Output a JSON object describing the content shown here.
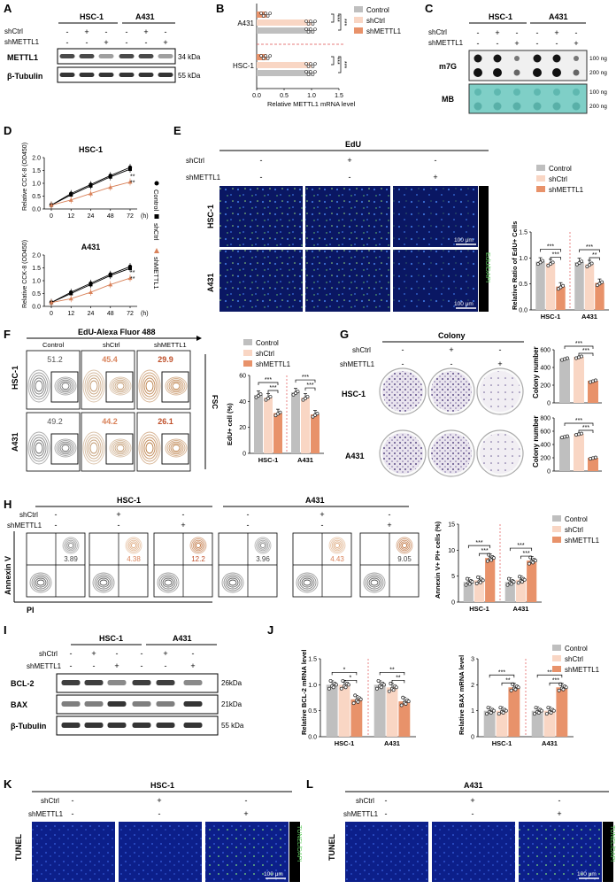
{
  "colors": {
    "control": "#bfbfbf",
    "shctrl": "#f9d6c4",
    "shmettl1": "#e8926a",
    "sh_dark": "#d9825a",
    "blot": "#2a2a2a",
    "dotbg": "#f2f2f2",
    "mb": "#7fcfc7",
    "micro": "#0b1a6b",
    "sig": "#d40000",
    "dash": "#e05050"
  },
  "common": {
    "shCtrl": "shCtrl",
    "shMETTL1": "shMETTL1",
    "Control": "Control",
    "HSC1": "HSC-1",
    "A431": "A431",
    "minus": "-",
    "plus": "+",
    "legend": [
      "Control",
      "shCtrl",
      "shMETTL1"
    ],
    "sig3": "***",
    "sig2": "**",
    "sig1": "*"
  },
  "panelA": {
    "letter": "A",
    "blot1": "METTL1",
    "blot2": "β-Tubulin",
    "kda1": "34 kDa",
    "kda2": "55 kDa"
  },
  "panelB": {
    "letter": "B",
    "xlabel": "Relative METTL1 mRNA level",
    "ticks": [
      "0.0",
      "0.5",
      "1.0",
      "1.5"
    ],
    "chart_data": {
      "type": "bar",
      "categories": [
        "A431",
        "HSC-1"
      ],
      "series": [
        {
          "name": "Control",
          "values": [
            1.0,
            1.0
          ]
        },
        {
          "name": "shCtrl",
          "values": [
            1.0,
            1.0
          ]
        },
        {
          "name": "shMETTL1",
          "values": [
            0.18,
            0.18
          ]
        }
      ],
      "xlim": [
        0,
        1.5
      ]
    }
  },
  "panelC": {
    "letter": "C",
    "m7g": "m7G",
    "mb": "MB",
    "ng100": "100 ng",
    "ng200": "200 ng"
  },
  "panelD": {
    "letter": "D",
    "ylabel": "Relative CCK-8 (OD450)",
    "xticks": [
      "0",
      "12",
      "24",
      "48",
      "72"
    ],
    "xunit": "(h)",
    "top": {
      "title": "HSC-1",
      "yticks": [
        "0.0",
        "0.5",
        "1.0",
        "1.5",
        "2.0"
      ]
    },
    "bottom": {
      "title": "A431",
      "yticks": [
        "0.0",
        "0.5",
        "1.0",
        "1.5",
        "2.0"
      ]
    },
    "chart_data": [
      {
        "type": "line",
        "title": "HSC-1",
        "x": [
          0,
          12,
          24,
          48,
          72
        ],
        "series": [
          {
            "name": "Control",
            "values": [
              0.15,
              0.6,
              0.95,
              1.3,
              1.62
            ]
          },
          {
            "name": "shCtrl",
            "values": [
              0.15,
              0.55,
              0.9,
              1.25,
              1.55
            ]
          },
          {
            "name": "shMETTL1",
            "values": [
              0.15,
              0.35,
              0.6,
              0.85,
              1.05
            ]
          }
        ],
        "ylim": [
          0,
          2
        ]
      },
      {
        "type": "line",
        "title": "A431",
        "x": [
          0,
          12,
          24,
          48,
          72
        ],
        "series": [
          {
            "name": "Control",
            "values": [
              0.15,
              0.55,
              0.9,
              1.25,
              1.55
            ]
          },
          {
            "name": "shCtrl",
            "values": [
              0.15,
              0.5,
              0.85,
              1.2,
              1.48
            ]
          },
          {
            "name": "shMETTL1",
            "values": [
              0.15,
              0.3,
              0.55,
              0.85,
              1.1
            ]
          }
        ],
        "ylim": [
          0,
          2
        ]
      }
    ]
  },
  "panelE": {
    "letter": "E",
    "edu": "EdU",
    "stain": "EdU/DAPI",
    "scale": "100 μm",
    "ylabel": "Relative Ratio of EdU+ Cells",
    "yticks": [
      "0.0",
      "0.5",
      "1.0",
      "1.5"
    ],
    "chart_data": {
      "type": "bar",
      "categories": [
        "HSC-1",
        "A431"
      ],
      "series": [
        {
          "name": "Control",
          "values": [
            0.93,
            0.92
          ]
        },
        {
          "name": "shCtrl",
          "values": [
            0.9,
            0.88
          ]
        },
        {
          "name": "shMETTL1",
          "values": [
            0.45,
            0.52
          ]
        }
      ],
      "ylim": [
        0,
        1.5
      ]
    }
  },
  "panelF": {
    "letter": "F",
    "header": "EdU-Alexa Fluor 488",
    "cols": [
      "Control",
      "shCtrl",
      "shMETTL1"
    ],
    "fsc": "FSC",
    "hsc": [
      "51.2",
      "45.4",
      "29.9"
    ],
    "a431": [
      "49.2",
      "44.2",
      "26.1"
    ],
    "ylabel": "EdU+ cell (%)",
    "yticks": [
      "0",
      "20",
      "40",
      "60"
    ],
    "chart_data": {
      "type": "bar",
      "categories": [
        "HSC-1",
        "A431"
      ],
      "series": [
        {
          "name": "Control",
          "values": [
            45,
            47
          ]
        },
        {
          "name": "shCtrl",
          "values": [
            43,
            43
          ]
        },
        {
          "name": "shMETTL1",
          "values": [
            31,
            30
          ]
        }
      ],
      "ylim": [
        0,
        60
      ]
    }
  },
  "panelG": {
    "letter": "G",
    "title": "Colony",
    "ylabel": "Colony number",
    "yticks": [
      "0",
      "200",
      "400",
      "600"
    ],
    "chart_data": [
      {
        "type": "bar",
        "title": "HSC-1",
        "categories": [
          "Control",
          "shCtrl",
          "shMETTL1"
        ],
        "values": [
          500,
          520,
          250
        ],
        "ylim": [
          0,
          600
        ]
      },
      {
        "type": "bar",
        "title": "A431",
        "categories": [
          "Control",
          "shCtrl",
          "shMETTL1"
        ],
        "values": [
          520,
          560,
          200
        ],
        "ylim": [
          0,
          800
        ]
      }
    ],
    "yticks2": [
      "0",
      "200",
      "400",
      "600",
      "800"
    ]
  },
  "panelH": {
    "letter": "H",
    "ylab": "Annexin V",
    "xlab": "PI",
    "hsc": [
      "3.89",
      "4.38",
      "12.2"
    ],
    "a431": [
      "3.96",
      "4.43",
      "9.05"
    ],
    "ylabel": "Annexin V+ PI+ cells (%)",
    "yticks": [
      "0",
      "5",
      "10",
      "15"
    ],
    "chart_data": {
      "type": "bar",
      "categories": [
        "HSC-1",
        "A431"
      ],
      "series": [
        {
          "name": "Control",
          "values": [
            3.9,
            3.9
          ]
        },
        {
          "name": "shCtrl",
          "values": [
            4.2,
            4.3
          ]
        },
        {
          "name": "shMETTL1",
          "values": [
            8.5,
            8.0
          ]
        }
      ],
      "ylim": [
        0,
        15
      ]
    }
  },
  "panelI": {
    "letter": "I",
    "blots": [
      "BCL-2",
      "BAX",
      "β-Tubulin"
    ],
    "kda": [
      "26kDa",
      "21kDa",
      "55 kDa"
    ]
  },
  "panelJ": {
    "letter": "J",
    "ylabel1": "Relative BCL-2 mRNA level",
    "ylabel2": "Relative BAX mRNA level",
    "yticks1": [
      "0.0",
      "0.5",
      "1.0",
      "1.5"
    ],
    "yticks2": [
      "0",
      "1",
      "2",
      "3"
    ],
    "chart_data": [
      {
        "type": "bar",
        "categories": [
          "HSC-1",
          "A431"
        ],
        "series": [
          {
            "name": "Control",
            "values": [
              1.0,
              1.0
            ]
          },
          {
            "name": "shCtrl",
            "values": [
              1.0,
              0.95
            ]
          },
          {
            "name": "shMETTL1",
            "values": [
              0.72,
              0.68
            ]
          }
        ],
        "ylim": [
          0,
          1.5
        ]
      },
      {
        "type": "bar",
        "categories": [
          "HSC-1",
          "A431"
        ],
        "series": [
          {
            "name": "Control",
            "values": [
              1.0,
              1.0
            ]
          },
          {
            "name": "shCtrl",
            "values": [
              1.0,
              1.0
            ]
          },
          {
            "name": "shMETTL1",
            "values": [
              1.9,
              1.9
            ]
          }
        ],
        "ylim": [
          0,
          3
        ]
      }
    ]
  },
  "panelK": {
    "letter": "K",
    "title": "HSC-1",
    "tunel": "TUNEL",
    "stain": "TUNEL/DAPI",
    "scale": "100 μm"
  },
  "panelL": {
    "letter": "L",
    "title": "A431",
    "tunel": "TUNEL"
  }
}
